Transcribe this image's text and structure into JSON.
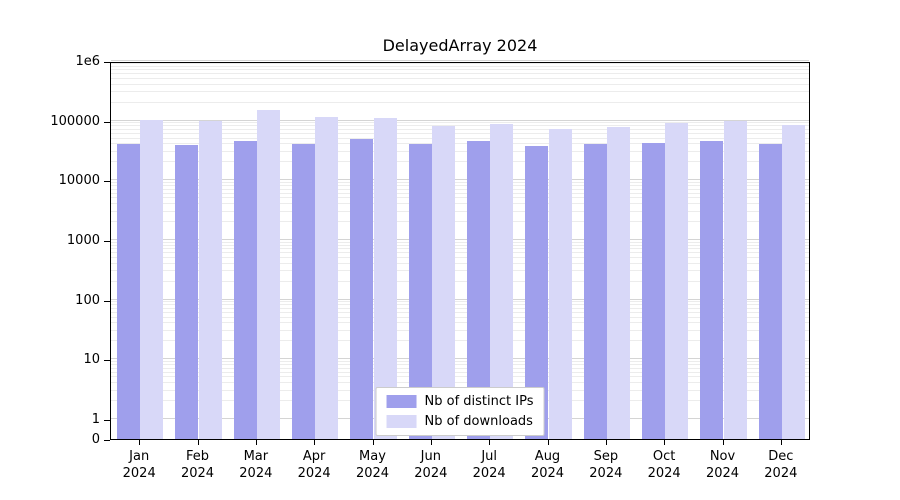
{
  "chart_data": {
    "type": "bar",
    "title": "DelayedArray 2024",
    "scale": "symlog",
    "grid": true,
    "legend_position": "lower center",
    "ylim": [
      0,
      1000000
    ],
    "year_label": "2024",
    "months": [
      "Jan",
      "Feb",
      "Mar",
      "Apr",
      "May",
      "Jun",
      "Jul",
      "Aug",
      "Sep",
      "Oct",
      "Nov",
      "Dec"
    ],
    "y_ticks": [
      {
        "value": 0,
        "label": "0"
      },
      {
        "value": 1,
        "label": "1"
      },
      {
        "value": 10,
        "label": "10"
      },
      {
        "value": 100,
        "label": "100"
      },
      {
        "value": 1000,
        "label": "1000"
      },
      {
        "value": 10000,
        "label": "10000"
      },
      {
        "value": 100000,
        "label": "100000"
      },
      {
        "value": 1000000,
        "label": "1e6"
      }
    ],
    "series": [
      {
        "name": "Nb of distinct IPs",
        "color": "#9f9fec",
        "values": [
          40000,
          39000,
          45000,
          41000,
          50000,
          41000,
          45000,
          37000,
          40000,
          43000,
          46000,
          40000
        ]
      },
      {
        "name": "Nb of downloads",
        "color": "#d8d8f8",
        "values": [
          103000,
          98000,
          150000,
          115000,
          110000,
          83000,
          88000,
          73000,
          79000,
          90000,
          99000,
          84000
        ]
      }
    ]
  }
}
